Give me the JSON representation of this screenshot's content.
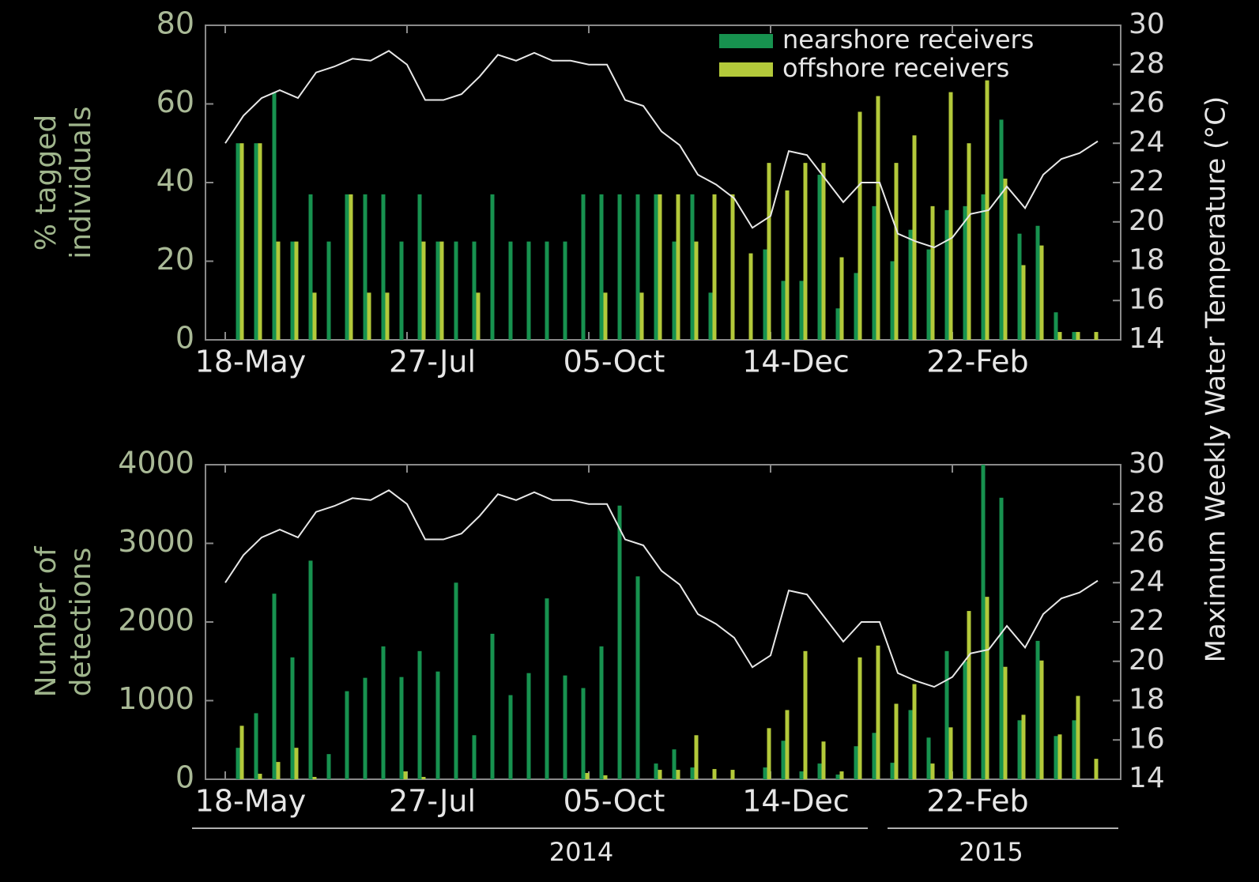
{
  "chart_data": [
    {
      "type": "bar",
      "ylabel": [
        "% tagged",
        "individuals"
      ],
      "y2label": "Maximum Weekly Water Temperature (°C)",
      "categories": [
        "18-May",
        null,
        null,
        null,
        null,
        null,
        null,
        null,
        null,
        null,
        "27-Jul",
        null,
        null,
        null,
        null,
        null,
        null,
        null,
        null,
        null,
        "05-Oct",
        null,
        null,
        null,
        null,
        null,
        null,
        null,
        null,
        null,
        "14-Dec",
        null,
        null,
        null,
        null,
        null,
        null,
        null,
        null,
        null,
        "22-Feb",
        null,
        null,
        null,
        null,
        null,
        null,
        null,
        null
      ],
      "series": [
        {
          "name": "nearshore receivers",
          "color": "#17924f",
          "values": [
            50,
            50,
            63,
            25,
            37,
            25,
            37,
            37,
            37,
            25,
            37,
            25,
            25,
            25,
            37,
            25,
            25,
            25,
            25,
            37,
            37,
            37,
            37,
            37,
            25,
            37,
            12,
            0,
            0,
            23,
            15,
            15,
            42,
            8,
            17,
            34,
            20,
            28,
            23,
            33,
            34,
            37,
            56,
            27,
            29,
            7,
            2,
            0,
            0
          ]
        },
        {
          "name": "offshore receivers",
          "color": "#b3c93a",
          "values": [
            50,
            50,
            25,
            25,
            12,
            0,
            37,
            12,
            12,
            0,
            25,
            25,
            0,
            12,
            0,
            0,
            0,
            0,
            0,
            0,
            12,
            0,
            12,
            37,
            37,
            25,
            37,
            37,
            22,
            45,
            38,
            45,
            45,
            21,
            58,
            62,
            45,
            52,
            34,
            63,
            50,
            66,
            41,
            19,
            24,
            2,
            2,
            2,
            0
          ]
        },
        {
          "name": "temperature",
          "color": "#e8e8e8",
          "axis": "y2",
          "values": [
            24.0,
            25.4,
            26.3,
            26.7,
            26.3,
            27.6,
            27.9,
            28.3,
            28.2,
            28.7,
            28.0,
            26.2,
            26.2,
            26.5,
            27.4,
            28.5,
            28.2,
            28.6,
            28.2,
            28.2,
            28.0,
            28.0,
            26.2,
            25.9,
            24.6,
            23.9,
            22.4,
            21.9,
            21.2,
            19.7,
            20.3,
            23.6,
            23.4,
            22.2,
            21.0,
            22.0,
            22.0,
            19.4,
            19.0,
            18.7,
            19.2,
            20.4,
            20.6,
            21.8,
            20.7,
            22.4,
            23.2,
            23.5,
            24.1
          ]
        }
      ],
      "ylim": [
        0,
        80
      ],
      "yticks": [
        0,
        20,
        40,
        60,
        80
      ],
      "y2lim": [
        14,
        30
      ],
      "y2ticks": [
        14,
        16,
        18,
        20,
        22,
        24,
        26,
        28,
        30
      ],
      "legend": "top-right"
    },
    {
      "type": "bar",
      "ylabel": [
        "Number of",
        "detections"
      ],
      "categories": [
        "18-May",
        null,
        null,
        null,
        null,
        null,
        null,
        null,
        null,
        null,
        "27-Jul",
        null,
        null,
        null,
        null,
        null,
        null,
        null,
        null,
        null,
        "05-Oct",
        null,
        null,
        null,
        null,
        null,
        null,
        null,
        null,
        null,
        "14-Dec",
        null,
        null,
        null,
        null,
        null,
        null,
        null,
        null,
        null,
        "22-Feb",
        null,
        null,
        null,
        null,
        null,
        null,
        null,
        null
      ],
      "series": [
        {
          "name": "nearshore receivers",
          "color": "#17924f",
          "values": [
            400,
            840,
            2360,
            1550,
            2780,
            320,
            1120,
            1290,
            1690,
            1300,
            1630,
            1370,
            2500,
            560,
            1850,
            1070,
            1350,
            2300,
            1320,
            1160,
            1690,
            3480,
            2580,
            200,
            380,
            150,
            0,
            0,
            0,
            150,
            490,
            100,
            200,
            60,
            420,
            590,
            210,
            880,
            530,
            1630,
            1500,
            4000,
            3580,
            750,
            1760,
            550,
            750,
            0,
            0
          ]
        },
        {
          "name": "offshore receivers",
          "color": "#b3c93a",
          "values": [
            680,
            70,
            220,
            400,
            30,
            0,
            0,
            0,
            0,
            100,
            30,
            0,
            0,
            0,
            0,
            0,
            0,
            0,
            0,
            80,
            50,
            0,
            0,
            120,
            120,
            560,
            130,
            120,
            0,
            650,
            880,
            1630,
            480,
            100,
            1550,
            1700,
            960,
            1210,
            200,
            660,
            2140,
            2320,
            1430,
            820,
            1510,
            570,
            1060,
            260,
            0
          ]
        },
        {
          "name": "temperature",
          "color": "#e8e8e8",
          "axis": "y2",
          "values": [
            24.0,
            25.4,
            26.3,
            26.7,
            26.3,
            27.6,
            27.9,
            28.3,
            28.2,
            28.7,
            28.0,
            26.2,
            26.2,
            26.5,
            27.4,
            28.5,
            28.2,
            28.6,
            28.2,
            28.2,
            28.0,
            28.0,
            26.2,
            25.9,
            24.6,
            23.9,
            22.4,
            21.9,
            21.2,
            19.7,
            20.3,
            23.6,
            23.4,
            22.2,
            21.0,
            22.0,
            22.0,
            19.4,
            19.0,
            18.7,
            19.2,
            20.4,
            20.6,
            21.8,
            20.7,
            22.4,
            23.2,
            23.5,
            24.1
          ]
        }
      ],
      "ylim": [
        0,
        4000
      ],
      "yticks": [
        0,
        1000,
        2000,
        3000,
        4000
      ],
      "y2lim": [
        14,
        30
      ],
      "y2ticks": [
        14,
        16,
        18,
        20,
        22,
        24,
        26,
        28,
        30
      ],
      "annotations": [
        "2014",
        "2015"
      ]
    }
  ]
}
